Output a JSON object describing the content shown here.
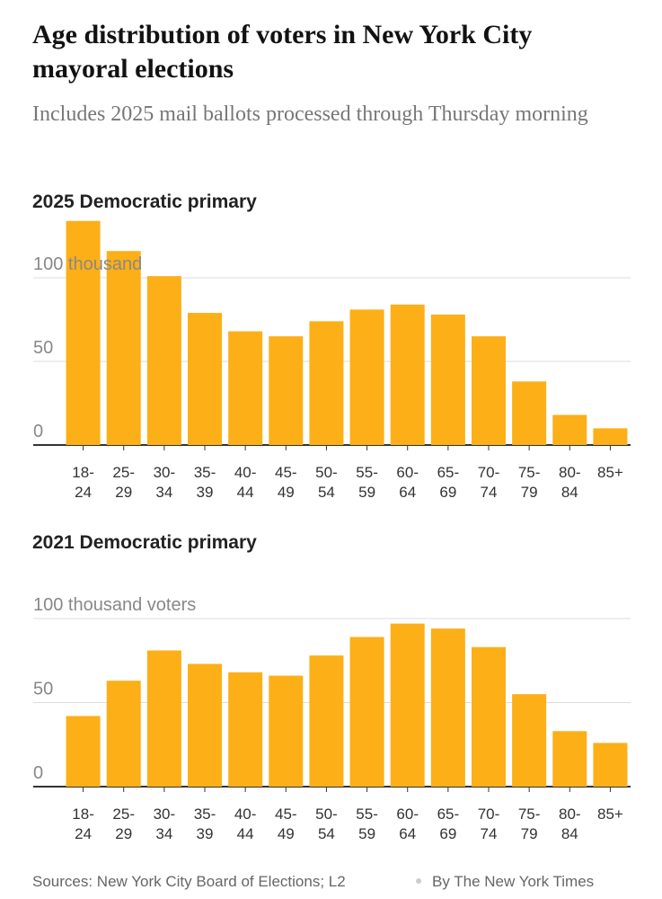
{
  "header": {
    "title": "Age distribution of voters in New York City mayoral elections",
    "subtitle": "Includes 2025 mail ballots processed through Thursday morning"
  },
  "chart_data": [
    {
      "type": "bar",
      "title": "2025 Democratic primary",
      "color": "#fdaf17",
      "categories": [
        "18-24",
        "25-29",
        "30-34",
        "35-39",
        "40-44",
        "45-49",
        "50-54",
        "55-59",
        "60-64",
        "65-69",
        "70-74",
        "75-79",
        "80-84",
        "85+"
      ],
      "values": [
        134,
        116,
        101,
        79,
        68,
        65,
        74,
        81,
        84,
        78,
        65,
        38,
        18,
        10
      ],
      "ylim": [
        0,
        140
      ],
      "yticks": [
        0,
        50,
        {
          "value": 100,
          "label": "100 thousand"
        }
      ],
      "grid": true
    },
    {
      "type": "bar",
      "title": "2021 Democratic primary",
      "color": "#fdaf17",
      "categories": [
        "18-24",
        "25-29",
        "30-34",
        "35-39",
        "40-44",
        "45-49",
        "50-54",
        "55-59",
        "60-64",
        "65-69",
        "70-74",
        "75-79",
        "80-84",
        "85+"
      ],
      "values": [
        42,
        63,
        81,
        73,
        68,
        66,
        78,
        89,
        97,
        94,
        83,
        55,
        33,
        26
      ],
      "ylim": [
        0,
        100
      ],
      "yticks": [
        0,
        50,
        {
          "value": 100,
          "label": "100 thousand voters"
        }
      ],
      "grid": true
    }
  ],
  "footer": {
    "source": "Sources: New York City Board of Elections; L2",
    "byline": "By The New York Times"
  }
}
